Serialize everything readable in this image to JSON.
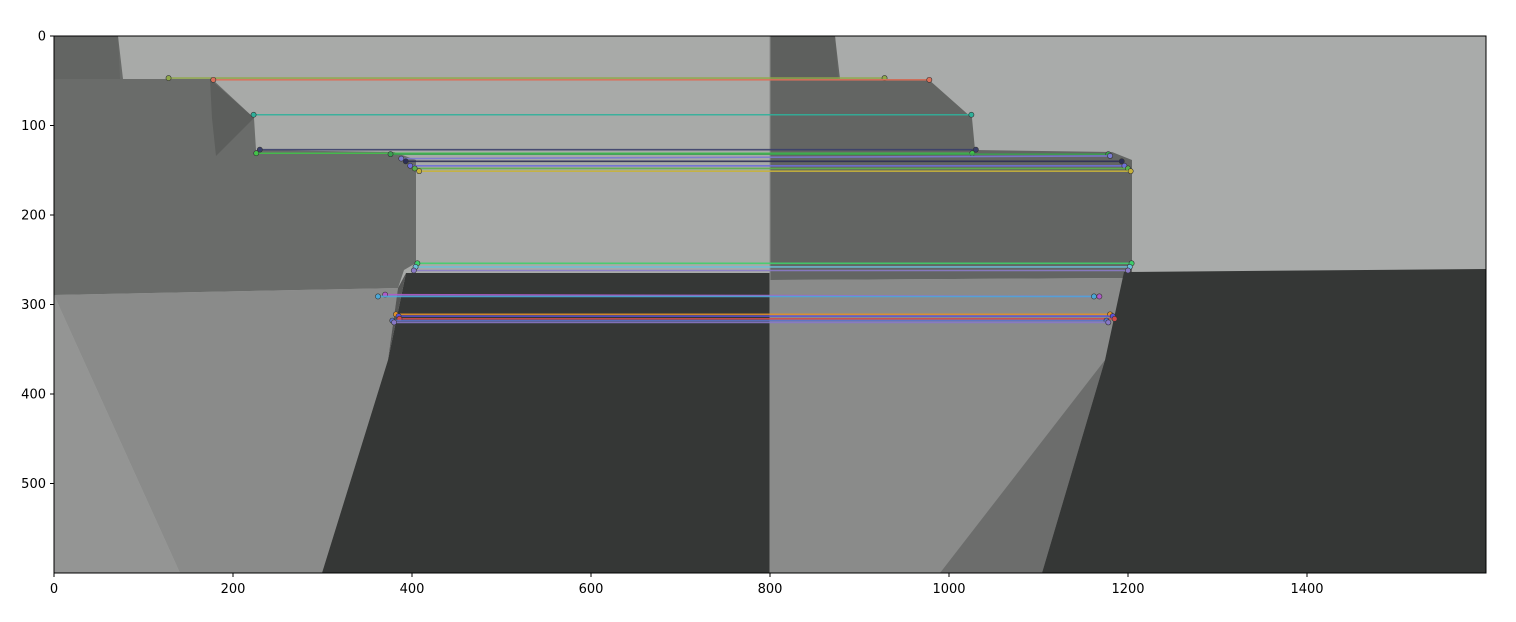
{
  "chart_data": {
    "type": "scatter",
    "title": "",
    "xlabel": "",
    "ylabel": "",
    "xlim": [
      0,
      1600
    ],
    "ylim": [
      600,
      0
    ],
    "x_ticks": [
      0,
      200,
      400,
      600,
      800,
      1000,
      1200,
      1400
    ],
    "y_ticks": [
      0,
      100,
      200,
      300,
      400,
      500
    ],
    "grid": false,
    "image_pair": {
      "panel_width": 800,
      "description_colors": {
        "light_floor": "#a8aaa8",
        "mid_gray": "#686a68",
        "dark_gray": "#353736",
        "slope_gray": "#8a8b8a"
      }
    },
    "matches": [
      {
        "x1": 128,
        "y1": 47,
        "x2": 928,
        "y2": 47,
        "color": "#8fa84a"
      },
      {
        "x1": 178,
        "y1": 49,
        "x2": 978,
        "y2": 49,
        "color": "#d9705a"
      },
      {
        "x1": 223,
        "y1": 88,
        "x2": 1025,
        "y2": 88,
        "color": "#2fb09a"
      },
      {
        "x1": 230,
        "y1": 127,
        "x2": 1030,
        "y2": 127,
        "color": "#3a3f6a"
      },
      {
        "x1": 226,
        "y1": 131,
        "x2": 1026,
        "y2": 131,
        "color": "#43c24a"
      },
      {
        "x1": 376,
        "y1": 132,
        "x2": 1178,
        "y2": 132,
        "color": "#3aa050"
      },
      {
        "x1": 388,
        "y1": 137,
        "x2": 1180,
        "y2": 134,
        "color": "#7a7ad0"
      },
      {
        "x1": 393,
        "y1": 140,
        "x2": 1193,
        "y2": 140,
        "color": "#2c2f55"
      },
      {
        "x1": 398,
        "y1": 145,
        "x2": 1196,
        "y2": 145,
        "color": "#6e6ed8"
      },
      {
        "x1": 403,
        "y1": 148,
        "x2": 1200,
        "y2": 148,
        "color": "#5bb04a"
      },
      {
        "x1": 408,
        "y1": 151,
        "x2": 1203,
        "y2": 151,
        "color": "#c7b23a"
      },
      {
        "x1": 406,
        "y1": 254,
        "x2": 1204,
        "y2": 254,
        "color": "#3fcf6a"
      },
      {
        "x1": 404,
        "y1": 258,
        "x2": 1202,
        "y2": 258,
        "color": "#6cc0d8"
      },
      {
        "x1": 402,
        "y1": 262,
        "x2": 1200,
        "y2": 262,
        "color": "#8a7ac8"
      },
      {
        "x1": 370,
        "y1": 289,
        "x2": 1168,
        "y2": 291,
        "color": "#b05ac8"
      },
      {
        "x1": 362,
        "y1": 291,
        "x2": 1162,
        "y2": 291,
        "color": "#4aa8d8"
      },
      {
        "x1": 382,
        "y1": 311,
        "x2": 1180,
        "y2": 311,
        "color": "#e0902a"
      },
      {
        "x1": 385,
        "y1": 313,
        "x2": 1183,
        "y2": 313,
        "color": "#5a50d8"
      },
      {
        "x1": 386,
        "y1": 316,
        "x2": 1185,
        "y2": 316,
        "color": "#d04a4a"
      },
      {
        "x1": 378,
        "y1": 318,
        "x2": 1176,
        "y2": 318,
        "color": "#5a72c8"
      },
      {
        "x1": 380,
        "y1": 320,
        "x2": 1178,
        "y2": 320,
        "color": "#8878c8"
      }
    ]
  }
}
